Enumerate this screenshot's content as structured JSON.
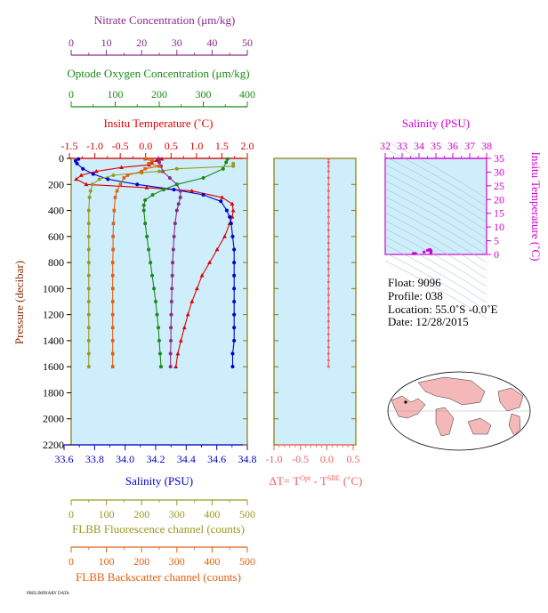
{
  "colors": {
    "plot_bg": "#cdeefa",
    "nitrate": "#8b2a8b",
    "oxygen": "#1a8a1a",
    "temperature": "#e00000",
    "salinity": "#0000cc",
    "fluorescence": "#9a9a20",
    "backscatter": "#e06010",
    "delta_t": "#f06060",
    "ts_axis": "#d000d0",
    "grid_frame": "#8a7a00"
  },
  "axes": {
    "nitrate": {
      "label": "Nitrate Concentration (μm/kg)",
      "ticks": [
        "0",
        "10",
        "20",
        "30",
        "40",
        "50"
      ],
      "range": [
        0,
        50
      ]
    },
    "oxygen": {
      "label": "Optode Oxygen Concentration (μm/kg)",
      "ticks": [
        "0",
        "100",
        "200",
        "300",
        "400"
      ],
      "range": [
        0,
        400
      ]
    },
    "temperature": {
      "label": "Insitu Temperature (˚C)",
      "ticks": [
        "-1.5",
        "-1.0",
        "-0.5",
        "0.0",
        "0.5",
        "1.0",
        "1.5",
        "2.0"
      ],
      "range": [
        -1.5,
        2.0
      ]
    },
    "pressure": {
      "label": "Pressure (decibar)",
      "ticks": [
        "0",
        "200",
        "400",
        "600",
        "800",
        "1000",
        "1200",
        "1400",
        "1600",
        "1800",
        "2000",
        "2200"
      ],
      "range": [
        0,
        2200
      ]
    },
    "salinity": {
      "label": "Salinity (PSU)",
      "ticks": [
        "33.6",
        "33.8",
        "34.0",
        "34.2",
        "34.4",
        "34.6",
        "34.8"
      ],
      "range": [
        33.6,
        34.8
      ]
    },
    "fluorescence": {
      "label": "FLBB Fluorescence channel (counts)",
      "ticks": [
        "0",
        "100",
        "200",
        "300",
        "400",
        "500"
      ],
      "range": [
        0,
        500
      ]
    },
    "backscatter": {
      "label": "FLBB Backscatter channel (counts)",
      "ticks": [
        "0",
        "100",
        "200",
        "300",
        "400",
        "500"
      ],
      "range": [
        0,
        500
      ]
    },
    "delta_t": {
      "label_main": "ΔT= T",
      "sup1": "Opt",
      "label_mid": " - T",
      "sup2": "SBE",
      "label_unit": " (˚C)",
      "ticks": [
        "-1.0",
        "-0.5",
        "0.0",
        "0.5"
      ],
      "range": [
        -1.0,
        0.5
      ]
    },
    "ts_salinity": {
      "label": "Salinity (PSU)",
      "ticks": [
        "32",
        "33",
        "34",
        "35",
        "36",
        "37",
        "38"
      ],
      "range": [
        32,
        38
      ]
    },
    "ts_temperature": {
      "label": "Insitu Temperature (˚C)",
      "ticks": [
        "0",
        "5",
        "10",
        "15",
        "20",
        "25",
        "30",
        "35"
      ],
      "range": [
        0,
        35
      ]
    }
  },
  "info": {
    "float": "Float:  9096",
    "profile": "Profile:  038",
    "location": "Location:  55.0˚S  -0.0˚E",
    "date": "Date:  12/28/2015"
  },
  "footer": "PRELIMINARY DATA",
  "chart_data": [
    {
      "type": "line",
      "y_axis": "pressure",
      "series": [
        {
          "name": "Insitu Temperature",
          "axis": "temperature",
          "marker": "triangle",
          "points": [
            [
              0.3,
              5
            ],
            [
              0.2,
              15
            ],
            [
              0.1,
              30
            ],
            [
              0.05,
              50
            ],
            [
              -0.5,
              70
            ],
            [
              -1.0,
              100
            ],
            [
              -1.3,
              130
            ],
            [
              -1.4,
              160
            ],
            [
              -1.2,
              200
            ],
            [
              0.0,
              225
            ],
            [
              0.9,
              250
            ],
            [
              1.5,
              300
            ],
            [
              1.7,
              350
            ],
            [
              1.72,
              400
            ],
            [
              1.7,
              450
            ],
            [
              1.65,
              500
            ],
            [
              1.55,
              600
            ],
            [
              1.4,
              700
            ],
            [
              1.25,
              800
            ],
            [
              1.1,
              900
            ],
            [
              1.0,
              1000
            ],
            [
              0.9,
              1100
            ],
            [
              0.82,
              1200
            ],
            [
              0.75,
              1300
            ],
            [
              0.68,
              1400
            ],
            [
              0.62,
              1500
            ],
            [
              0.58,
              1600
            ]
          ]
        },
        {
          "name": "Salinity",
          "axis": "salinity",
          "marker": "circle",
          "points": [
            [
              33.65,
              5
            ],
            [
              33.63,
              20
            ],
            [
              33.64,
              40
            ],
            [
              33.68,
              80
            ],
            [
              33.75,
              120
            ],
            [
              33.85,
              160
            ],
            [
              34.05,
              200
            ],
            [
              34.3,
              240
            ],
            [
              34.5,
              280
            ],
            [
              34.62,
              330
            ],
            [
              34.66,
              400
            ],
            [
              34.68,
              450
            ],
            [
              34.69,
              500
            ],
            [
              34.7,
              600
            ],
            [
              34.71,
              700
            ],
            [
              34.71,
              800
            ],
            [
              34.71,
              900
            ],
            [
              34.71,
              1000
            ],
            [
              34.71,
              1100
            ],
            [
              34.71,
              1200
            ],
            [
              34.71,
              1300
            ],
            [
              34.71,
              1400
            ],
            [
              34.7,
              1500
            ],
            [
              34.7,
              1600
            ]
          ]
        },
        {
          "name": "Nitrate",
          "axis": "nitrate",
          "marker": "circle",
          "points": [
            [
              25,
              5
            ],
            [
              25,
              30
            ],
            [
              25.5,
              60
            ],
            [
              26,
              100
            ],
            [
              28,
              150
            ],
            [
              30,
              200
            ],
            [
              31,
              250
            ],
            [
              31,
              300
            ],
            [
              30.5,
              350
            ],
            [
              30,
              400
            ],
            [
              29.5,
              500
            ],
            [
              29.2,
              600
            ],
            [
              29,
              700
            ],
            [
              28.8,
              800
            ],
            [
              28.7,
              900
            ],
            [
              28.6,
              1000
            ],
            [
              28.5,
              1100
            ],
            [
              28.4,
              1200
            ],
            [
              28.3,
              1300
            ],
            [
              28.3,
              1400
            ],
            [
              28.2,
              1500
            ],
            [
              28.2,
              1600
            ]
          ]
        },
        {
          "name": "Oxygen",
          "axis": "oxygen",
          "marker": "circle",
          "points": [
            [
              355,
              5
            ],
            [
              352,
              30
            ],
            [
              345,
              80
            ],
            [
              300,
              150
            ],
            [
              240,
              200
            ],
            [
              210,
              240
            ],
            [
              185,
              280
            ],
            [
              168,
              320
            ],
            [
              165,
              360
            ],
            [
              165,
              400
            ],
            [
              168,
              500
            ],
            [
              172,
              600
            ],
            [
              176,
              700
            ],
            [
              180,
              800
            ],
            [
              184,
              900
            ],
            [
              188,
              1000
            ],
            [
              192,
              1100
            ],
            [
              195,
              1200
            ],
            [
              198,
              1300
            ],
            [
              200,
              1400
            ],
            [
              202,
              1500
            ],
            [
              204,
              1600
            ]
          ]
        },
        {
          "name": "FLBB Fluorescence",
          "axis": "fluorescence",
          "marker": "circle",
          "points": [
            [
              460,
              40
            ],
            [
              460,
              60
            ],
            [
              300,
              80
            ],
            [
              250,
              100
            ],
            [
              200,
              110
            ],
            [
              120,
              130
            ],
            [
              80,
              160
            ],
            [
              60,
              200
            ],
            [
              55,
              250
            ],
            [
              52,
              300
            ],
            [
              50,
              400
            ],
            [
              50,
              500
            ],
            [
              50,
              600
            ],
            [
              50,
              700
            ],
            [
              50,
              800
            ],
            [
              50,
              900
            ],
            [
              50,
              1000
            ],
            [
              50,
              1100
            ],
            [
              50,
              1200
            ],
            [
              50,
              1300
            ],
            [
              50,
              1400
            ],
            [
              50,
              1500
            ],
            [
              50,
              1600
            ]
          ]
        },
        {
          "name": "FLBB Backscatter",
          "axis": "backscatter",
          "marker": "square",
          "points": [
            [
              210,
              5
            ],
            [
              230,
              20
            ],
            [
              220,
              40
            ],
            [
              250,
              60
            ],
            [
              210,
              80
            ],
            [
              200,
              100
            ],
            [
              160,
              130
            ],
            [
              150,
              150
            ],
            [
              140,
              200
            ],
            [
              130,
              250
            ],
            [
              125,
              300
            ],
            [
              122,
              400
            ],
            [
              120,
              500
            ],
            [
              119,
              600
            ],
            [
              119,
              700
            ],
            [
              118,
              800
            ],
            [
              118,
              900
            ],
            [
              118,
              1000
            ],
            [
              118,
              1100
            ],
            [
              118,
              1200
            ],
            [
              118,
              1300
            ],
            [
              118,
              1400
            ],
            [
              118,
              1500
            ],
            [
              118,
              1600
            ]
          ]
        },
        {
          "name": "Delta T",
          "axis": "delta_t",
          "marker": "circle",
          "points": [
            [
              0.0,
              5
            ],
            [
              0.0,
              30
            ],
            [
              0.0,
              60
            ],
            [
              0.0,
              100
            ],
            [
              0.0,
              150
            ],
            [
              0.0,
              200
            ],
            [
              0.0,
              250
            ],
            [
              0.0,
              300
            ],
            [
              0.0,
              350
            ],
            [
              0.0,
              400
            ],
            [
              0.0,
              450
            ],
            [
              0.0,
              500
            ],
            [
              0.0,
              550
            ],
            [
              0.0,
              600
            ],
            [
              0.0,
              650
            ],
            [
              0.0,
              700
            ],
            [
              0.0,
              750
            ],
            [
              0.0,
              800
            ],
            [
              0.0,
              850
            ],
            [
              0.0,
              900
            ],
            [
              0.0,
              950
            ],
            [
              0.0,
              1000
            ],
            [
              0.0,
              1050
            ],
            [
              0.0,
              1100
            ],
            [
              0.0,
              1150
            ],
            [
              0.0,
              1200
            ],
            [
              0.0,
              1250
            ],
            [
              0.0,
              1300
            ],
            [
              0.0,
              1350
            ],
            [
              0.0,
              1400
            ],
            [
              0.0,
              1450
            ],
            [
              0.0,
              1500
            ],
            [
              0.0,
              1550
            ],
            [
              0.0,
              1600
            ]
          ]
        }
      ]
    },
    {
      "type": "scatter",
      "x_axis": "ts_salinity",
      "y_axis": "ts_temperature",
      "points": [
        [
          33.65,
          0.3
        ],
        [
          33.7,
          0.2
        ],
        [
          33.75,
          -0.5
        ],
        [
          33.8,
          -1.0
        ],
        [
          34.3,
          0.9
        ],
        [
          34.5,
          1.5
        ],
        [
          34.6,
          1.7
        ],
        [
          34.66,
          1.72
        ],
        [
          34.68,
          1.65
        ],
        [
          34.7,
          1.55
        ],
        [
          34.7,
          1.4
        ],
        [
          34.71,
          1.25
        ],
        [
          34.71,
          1.1
        ],
        [
          34.71,
          1.0
        ],
        [
          34.71,
          0.9
        ],
        [
          34.71,
          0.8
        ],
        [
          34.71,
          0.7
        ],
        [
          34.7,
          0.6
        ]
      ]
    }
  ]
}
